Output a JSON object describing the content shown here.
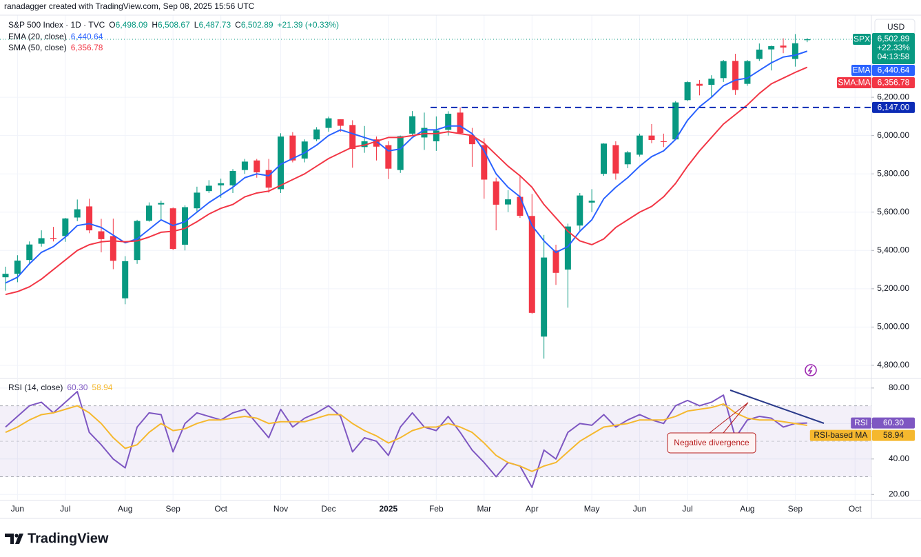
{
  "header": {
    "credit": "ranadagger created with TradingView.com, Sep 08, 2025 15:56 UTC"
  },
  "footer": {
    "brand": "TradingView"
  },
  "chart_data": [
    {
      "type": "candlestick",
      "title": "S&P 500 Index · 1D · TVC",
      "ohlc_legend": [
        {
          "key": "O",
          "value": "6,498.09"
        },
        {
          "key": "H",
          "value": "6,508.67"
        },
        {
          "key": "L",
          "value": "6,487.73"
        },
        {
          "key": "C",
          "value": "6,502.89"
        }
      ],
      "change": "+21.39 (+0.33%)",
      "currency": "USD",
      "up_color": "#089981",
      "down_color": "#f23645",
      "categories": [
        null,
        "Jun",
        null,
        null,
        null,
        "Jul",
        null,
        null,
        null,
        null,
        "Aug",
        null,
        null,
        null,
        "Sep",
        null,
        null,
        null,
        "Oct",
        null,
        null,
        null,
        null,
        "Nov",
        null,
        null,
        null,
        "Dec",
        null,
        null,
        null,
        null,
        "2025",
        null,
        null,
        null,
        "Feb",
        null,
        null,
        null,
        "Mar",
        null,
        null,
        null,
        "Apr",
        null,
        null,
        null,
        null,
        "May",
        null,
        null,
        null,
        "Jun",
        null,
        null,
        null,
        "Jul",
        null,
        null,
        null,
        null,
        "Aug",
        null,
        null,
        null,
        "Sep",
        null,
        null,
        null,
        null,
        "Oct"
      ],
      "candles": [
        [
          5260,
          5315,
          5190,
          5278
        ],
        [
          5278,
          5375,
          5234,
          5347
        ],
        [
          5350,
          5447,
          5330,
          5431
        ],
        [
          5435,
          5505,
          5420,
          5464
        ],
        [
          5465,
          5523,
          5447,
          5460
        ],
        [
          5475,
          5570,
          5445,
          5567
        ],
        [
          5572,
          5666,
          5553,
          5615
        ],
        [
          5630,
          5670,
          5490,
          5505
        ],
        [
          5500,
          5565,
          5390,
          5459
        ],
        [
          5475,
          5566,
          5302,
          5346
        ],
        [
          5150,
          5370,
          5119,
          5344
        ],
        [
          5350,
          5560,
          5330,
          5554
        ],
        [
          5555,
          5651,
          5550,
          5634
        ],
        [
          5640,
          5660,
          5560,
          5648
        ],
        [
          5620,
          5625,
          5402,
          5408
        ],
        [
          5430,
          5636,
          5400,
          5626
        ],
        [
          5620,
          5733,
          5600,
          5702
        ],
        [
          5710,
          5767,
          5700,
          5738
        ],
        [
          5740,
          5775,
          5675,
          5751
        ],
        [
          5740,
          5825,
          5700,
          5815
        ],
        [
          5820,
          5878,
          5800,
          5864
        ],
        [
          5870,
          5878,
          5780,
          5808
        ],
        [
          5820,
          5878,
          5702,
          5728
        ],
        [
          5720,
          6012,
          5700,
          5995
        ],
        [
          6000,
          6018,
          5860,
          5870
        ],
        [
          5880,
          5980,
          5860,
          5969
        ],
        [
          5980,
          6044,
          5970,
          6032
        ],
        [
          6040,
          6099,
          6020,
          6090
        ],
        [
          6085,
          6085,
          6020,
          6051
        ],
        [
          6055,
          6080,
          5832,
          5930
        ],
        [
          5940,
          6050,
          5910,
          5970
        ],
        [
          5980,
          5995,
          5870,
          5942
        ],
        [
          5950,
          5970,
          5773,
          5827
        ],
        [
          5820,
          6000,
          5805,
          5997
        ],
        [
          6010,
          6128,
          6000,
          6101
        ],
        [
          5990,
          6120,
          5925,
          6040
        ],
        [
          5970,
          6100,
          5920,
          6026
        ],
        [
          6030,
          6127,
          6000,
          6114
        ],
        [
          6120,
          6147,
          6010,
          6013
        ],
        [
          6000,
          6040,
          5837,
          5955
        ],
        [
          5950,
          5986,
          5670,
          5770
        ],
        [
          5760,
          5780,
          5505,
          5639
        ],
        [
          5640,
          5715,
          5600,
          5667
        ],
        [
          5680,
          5786,
          5570,
          5581
        ],
        [
          5580,
          5695,
          5069,
          5074
        ],
        [
          4950,
          5481,
          4835,
          5363
        ],
        [
          5400,
          5430,
          5220,
          5283
        ],
        [
          5300,
          5540,
          5101,
          5525
        ],
        [
          5530,
          5700,
          5500,
          5687
        ],
        [
          5650,
          5720,
          5600,
          5660
        ],
        [
          5800,
          5960,
          5790,
          5958
        ],
        [
          5950,
          5970,
          5770,
          5802
        ],
        [
          5850,
          5920,
          5830,
          5912
        ],
        [
          5900,
          6010,
          5890,
          6000
        ],
        [
          6000,
          6060,
          5960,
          5977
        ],
        [
          5970,
          6010,
          5940,
          5967
        ],
        [
          5980,
          6180,
          5980,
          6173
        ],
        [
          6185,
          6285,
          6180,
          6279
        ],
        [
          6270,
          6290,
          6210,
          6260
        ],
        [
          6265,
          6315,
          6200,
          6297
        ],
        [
          6300,
          6395,
          6280,
          6389
        ],
        [
          6390,
          6427,
          6212,
          6238
        ],
        [
          6270,
          6395,
          6260,
          6389
        ],
        [
          6400,
          6481,
          6390,
          6449
        ],
        [
          6450,
          6470,
          6340,
          6467
        ],
        [
          6470,
          6508,
          6430,
          6460
        ],
        [
          6400,
          6530,
          6360,
          6482
        ],
        [
          6498.09,
          6508.67,
          6487.73,
          6502.89
        ],
        null,
        null,
        null,
        null
      ],
      "series": [
        {
          "name": "EMA (20, close)",
          "tag": "EMA",
          "color": "#2962ff",
          "values": [
            5230,
            5260,
            5330,
            5390,
            5420,
            5470,
            5530,
            5540,
            5520,
            5480,
            5440,
            5460,
            5510,
            5560,
            5530,
            5550,
            5600,
            5650,
            5690,
            5730,
            5780,
            5800,
            5790,
            5850,
            5880,
            5910,
            5950,
            6000,
            6030,
            6010,
            5990,
            5970,
            5920,
            5930,
            5990,
            6030,
            6030,
            6050,
            6050,
            6010,
            5920,
            5800,
            5730,
            5680,
            5530,
            5450,
            5390,
            5420,
            5500,
            5560,
            5670,
            5730,
            5780,
            5840,
            5890,
            5920,
            5980,
            6080,
            6150,
            6200,
            6260,
            6290,
            6300,
            6340,
            6380,
            6410,
            6420,
            6440.64,
            null,
            null,
            null,
            null
          ],
          "last": {
            "value": 6440.64,
            "label": "6,440.64"
          }
        },
        {
          "name": "SMA (50, close)",
          "tag": "SMA:MA",
          "color": "#f23645",
          "values": [
            5170,
            5185,
            5210,
            5250,
            5300,
            5350,
            5400,
            5430,
            5445,
            5450,
            5445,
            5450,
            5470,
            5495,
            5500,
            5515,
            5550,
            5590,
            5620,
            5640,
            5680,
            5700,
            5710,
            5740,
            5770,
            5800,
            5840,
            5880,
            5910,
            5940,
            5950,
            5970,
            5990,
            5990,
            6000,
            6010,
            6010,
            6020,
            6010,
            6000,
            5960,
            5900,
            5840,
            5790,
            5730,
            5640,
            5570,
            5500,
            5450,
            5430,
            5460,
            5520,
            5560,
            5600,
            5630,
            5680,
            5750,
            5840,
            5920,
            5990,
            6060,
            6110,
            6160,
            6220,
            6270,
            6300,
            6330,
            6356.78,
            null,
            null,
            null,
            null
          ],
          "last": {
            "value": 6356.78,
            "label": "6,356.78"
          }
        }
      ],
      "price_line": {
        "symbol": "SPX",
        "value": 6502.89,
        "label": "6,502.89",
        "change": "+22.33%",
        "countdown": "04:13:58"
      },
      "level": {
        "value": 6147,
        "label": "6,147.00",
        "color": "#0c2bb5"
      },
      "ylim": [
        4735,
        6600
      ],
      "yticks": [
        {
          "value": 4800,
          "label": "4,800.00"
        },
        {
          "value": 5000,
          "label": "5,000.00"
        },
        {
          "value": 5200,
          "label": "5,200.00"
        },
        {
          "value": 5400,
          "label": "5,400.00"
        },
        {
          "value": 5600,
          "label": "5,600.00"
        },
        {
          "value": 5800,
          "label": "5,800.00"
        },
        {
          "value": 6000,
          "label": "6,000.00"
        },
        {
          "value": 6200,
          "label": "6,200.00"
        }
      ],
      "grid": true
    },
    {
      "type": "line",
      "title": "RSI (14, close)",
      "series": [
        {
          "name": "RSI",
          "tag": "RSI",
          "color": "#7e57c2",
          "values": [
            58,
            64,
            70,
            72,
            66,
            72,
            78,
            55,
            48,
            40,
            35,
            58,
            66,
            65,
            44,
            60,
            66,
            64,
            62,
            66,
            68,
            60,
            52,
            68,
            58,
            63,
            66,
            70,
            64,
            44,
            52,
            50,
            42,
            58,
            66,
            58,
            56,
            64,
            55,
            45,
            38,
            30,
            38,
            36,
            24,
            45,
            40,
            55,
            60,
            59,
            65,
            58,
            62,
            65,
            62,
            60,
            70,
            73,
            70,
            72,
            76,
            52,
            62,
            64,
            63,
            58,
            60,
            60.3,
            null,
            null,
            null,
            null
          ],
          "last": {
            "value": 60.3,
            "label": "60.30"
          }
        },
        {
          "name": "RSI-based MA",
          "tag": "RSI-based MA",
          "color": "#f5b82e",
          "values": [
            55,
            58,
            62,
            65,
            66,
            68,
            70,
            66,
            60,
            52,
            46,
            48,
            55,
            60,
            56,
            57,
            60,
            62,
            62,
            63,
            64,
            63,
            60,
            61,
            61,
            61,
            63,
            65,
            65,
            60,
            56,
            53,
            49,
            52,
            56,
            58,
            58,
            60,
            58,
            55,
            49,
            42,
            38,
            36,
            33,
            36,
            38,
            44,
            50,
            54,
            58,
            59,
            60,
            62,
            62,
            62,
            64,
            67,
            68,
            69,
            71,
            66,
            63,
            62,
            62,
            61,
            60,
            58.94,
            null,
            null,
            null,
            null
          ],
          "last": {
            "value": 58.94,
            "label": "58.94"
          }
        }
      ],
      "bands": [
        30,
        50,
        70
      ],
      "annotation": "Negative divergence",
      "ylim": [
        17,
        85
      ],
      "yticks": [
        {
          "value": 20,
          "label": "20.00"
        },
        {
          "value": 40,
          "label": "40.00"
        },
        {
          "value": 60,
          "label": "60.00"
        },
        {
          "value": 80,
          "label": "80.00"
        }
      ],
      "grid": true
    }
  ]
}
